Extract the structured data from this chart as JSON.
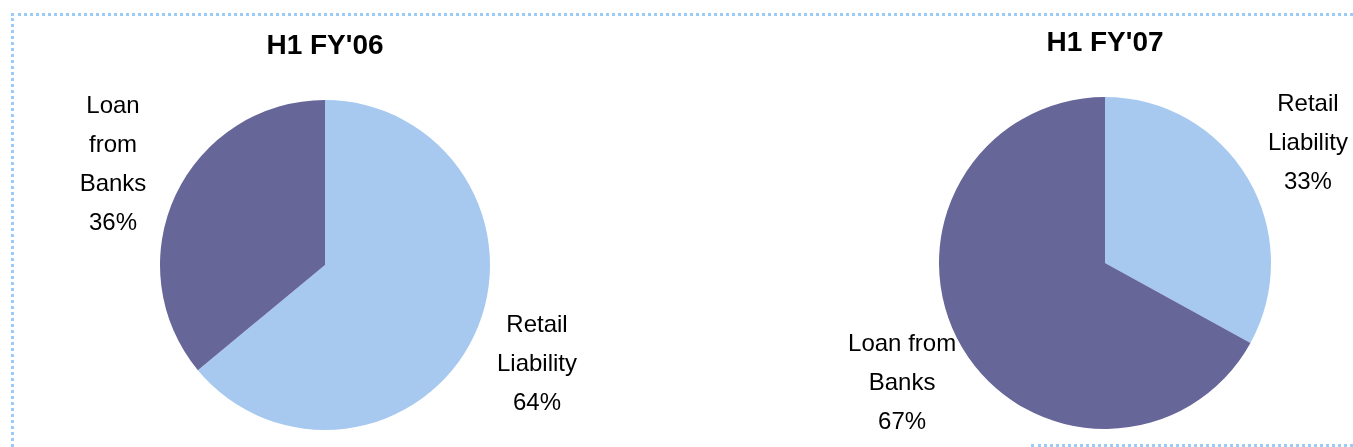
{
  "chart_data": [
    {
      "type": "pie",
      "title": "H1 FY'06",
      "categories": [
        "Retail Liability",
        "Loan from Banks"
      ],
      "values": [
        64,
        36
      ],
      "colors": [
        "#a7c9ef",
        "#666699"
      ],
      "value_labels": [
        "64%",
        "36%"
      ]
    },
    {
      "type": "pie",
      "title": "H1 FY'07",
      "categories": [
        "Retail Liability",
        "Loan from Banks"
      ],
      "values": [
        33,
        67
      ],
      "colors": [
        "#a7c9ef",
        "#666699"
      ],
      "value_labels": [
        "33%",
        "67%"
      ]
    }
  ]
}
